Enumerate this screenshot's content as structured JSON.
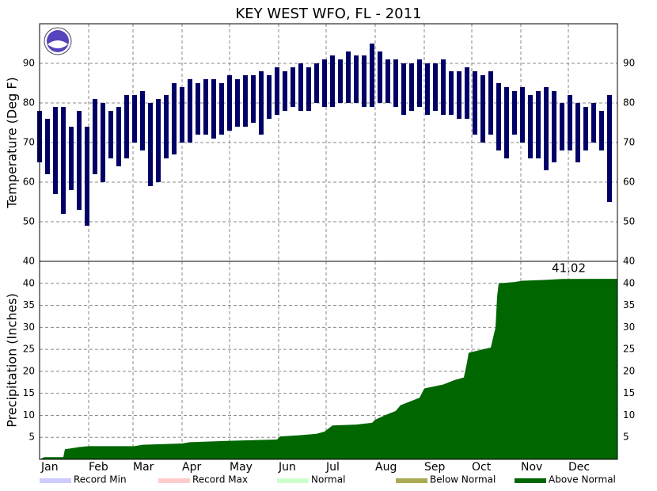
{
  "title": "KEY WEST WFO, FL - 2011",
  "legend": [
    {
      "name": "Record Min",
      "color": "#ccccff"
    },
    {
      "name": "Record Max",
      "color": "#ffcccc"
    },
    {
      "name": "Normal",
      "color": "#ccffcc"
    },
    {
      "name": "Below Normal",
      "color": "#aaaa55"
    },
    {
      "name": "Above Normal",
      "color": "#006600"
    }
  ],
  "chart_data": [
    {
      "type": "range",
      "ylabel": "Temperature (Deg F)",
      "color": "#000066",
      "xlim": [
        0,
        365
      ],
      "xticks": [
        {
          "value": 0,
          "label": "Jan"
        },
        {
          "value": 31,
          "label": "Feb"
        },
        {
          "value": 59,
          "label": "Mar"
        },
        {
          "value": 90,
          "label": "Apr"
        },
        {
          "value": 120,
          "label": "May"
        },
        {
          "value": 151,
          "label": "Jun"
        },
        {
          "value": 181,
          "label": "Jul"
        },
        {
          "value": 212,
          "label": "Aug"
        },
        {
          "value": 243,
          "label": "Sep"
        },
        {
          "value": 273,
          "label": "Oct"
        },
        {
          "value": 304,
          "label": "Nov"
        },
        {
          "value": 334,
          "label": "Dec"
        }
      ],
      "ylim": [
        40,
        100
      ],
      "yticks": [
        40,
        50,
        60,
        70,
        80,
        90
      ],
      "x": [
        0,
        5,
        10,
        15,
        20,
        25,
        30,
        35,
        40,
        45,
        50,
        55,
        60,
        65,
        70,
        75,
        80,
        85,
        90,
        95,
        100,
        105,
        110,
        115,
        120,
        125,
        130,
        135,
        140,
        145,
        150,
        155,
        160,
        165,
        170,
        175,
        180,
        185,
        190,
        195,
        200,
        205,
        210,
        215,
        220,
        225,
        230,
        235,
        240,
        245,
        250,
        255,
        260,
        265,
        270,
        275,
        280,
        285,
        290,
        295,
        300,
        305,
        310,
        315,
        320,
        325,
        330,
        335,
        340,
        345,
        350,
        355,
        360
      ],
      "low": [
        65,
        62,
        57,
        52,
        58,
        53,
        49,
        62,
        60,
        66,
        64,
        66,
        70,
        68,
        59,
        60,
        66,
        67,
        70,
        70,
        72,
        72,
        71,
        72,
        73,
        74,
        74,
        75,
        72,
        76,
        77,
        78,
        79,
        78,
        78,
        80,
        79,
        79,
        80,
        80,
        80,
        79,
        79,
        80,
        80,
        79,
        77,
        78,
        79,
        77,
        78,
        77,
        77,
        76,
        76,
        72,
        70,
        72,
        68,
        66,
        72,
        70,
        66,
        66,
        63,
        65,
        68,
        68,
        65,
        68,
        70,
        68,
        55
      ],
      "high": [
        78,
        76,
        79,
        79,
        74,
        78,
        74,
        81,
        80,
        78,
        79,
        82,
        82,
        83,
        80,
        81,
        82,
        85,
        84,
        86,
        85,
        86,
        86,
        85,
        87,
        86,
        87,
        87,
        88,
        87,
        89,
        88,
        89,
        90,
        89,
        90,
        91,
        92,
        91,
        93,
        92,
        92,
        95,
        93,
        91,
        91,
        90,
        90,
        91,
        90,
        90,
        91,
        88,
        88,
        89,
        88,
        87,
        88,
        85,
        84,
        83,
        84,
        82,
        83,
        84,
        83,
        80,
        82,
        80,
        79,
        80,
        78,
        82
      ]
    },
    {
      "type": "area",
      "ylabel": "Precipitation (Inches)",
      "color": "#006600",
      "annotation": "41.02",
      "ylim": [
        0,
        45
      ],
      "yticks": [
        5,
        10,
        15,
        20,
        25,
        30,
        35,
        40
      ],
      "x": [
        0,
        3,
        10,
        15,
        16,
        20,
        25,
        31,
        60,
        65,
        90,
        95,
        120,
        150,
        152,
        165,
        175,
        180,
        185,
        200,
        210,
        212,
        218,
        225,
        228,
        240,
        243,
        255,
        262,
        268,
        270,
        271,
        280,
        285,
        288,
        289,
        290,
        300,
        305,
        320,
        330,
        365
      ],
      "values": [
        0,
        0.5,
        0.5,
        0.5,
        2.3,
        2.5,
        2.8,
        3.0,
        3.0,
        3.3,
        3.6,
        3.9,
        4.2,
        4.5,
        5.2,
        5.5,
        5.8,
        6.3,
        7.7,
        7.9,
        8.3,
        9.0,
        10.0,
        11.0,
        12.3,
        14.0,
        16.1,
        17.0,
        18.0,
        18.6,
        22.0,
        24.2,
        25.0,
        25.4,
        30.0,
        37.0,
        40.0,
        40.3,
        40.6,
        40.8,
        41.0,
        41.02
      ]
    }
  ]
}
